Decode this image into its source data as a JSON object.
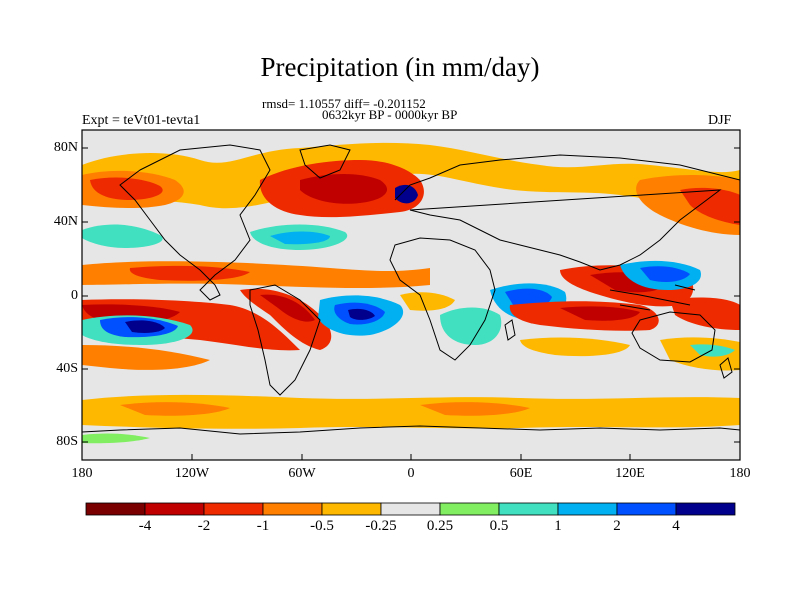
{
  "title": "Precipitation (in mm/day)",
  "stats_line": "rmsd= 1.10557 diff= -0.201152",
  "period_line": "0632kyr BP - 0000kyr BP",
  "experiment": "Expt = teVt01-tevta1",
  "season": "DJF",
  "lat_labels": [
    "80N",
    "40N",
    "0",
    "40S",
    "80S"
  ],
  "lon_labels": [
    "180",
    "120W",
    "60W",
    "0",
    "60E",
    "120E",
    "180"
  ],
  "colorbar": {
    "colors": [
      "#7a0000",
      "#c00000",
      "#ee2a00",
      "#ff7f00",
      "#ffb800",
      "#e6e6e6",
      "#80ee60",
      "#40e0c0",
      "#00b0f0",
      "#0050ff",
      "#00008c"
    ],
    "labels": [
      "-4",
      "-2",
      "-1",
      "-0.5",
      "-0.25",
      "0.25",
      "0.5",
      "1",
      "2",
      "4"
    ]
  },
  "legend_colors": {
    "neutral": "#e6e6e6",
    "strong_dry": "#c00000",
    "dry": "#ee2a00",
    "moderate_dry": "#ff7f00",
    "light_dry": "#ffb800",
    "light_wet": "#80ee60",
    "wet": "#40e0c0",
    "more_wet": "#00b0f0",
    "strong_wet": "#0050ff",
    "extreme_wet": "#00008c",
    "extreme_dry": "#7a0000"
  }
}
